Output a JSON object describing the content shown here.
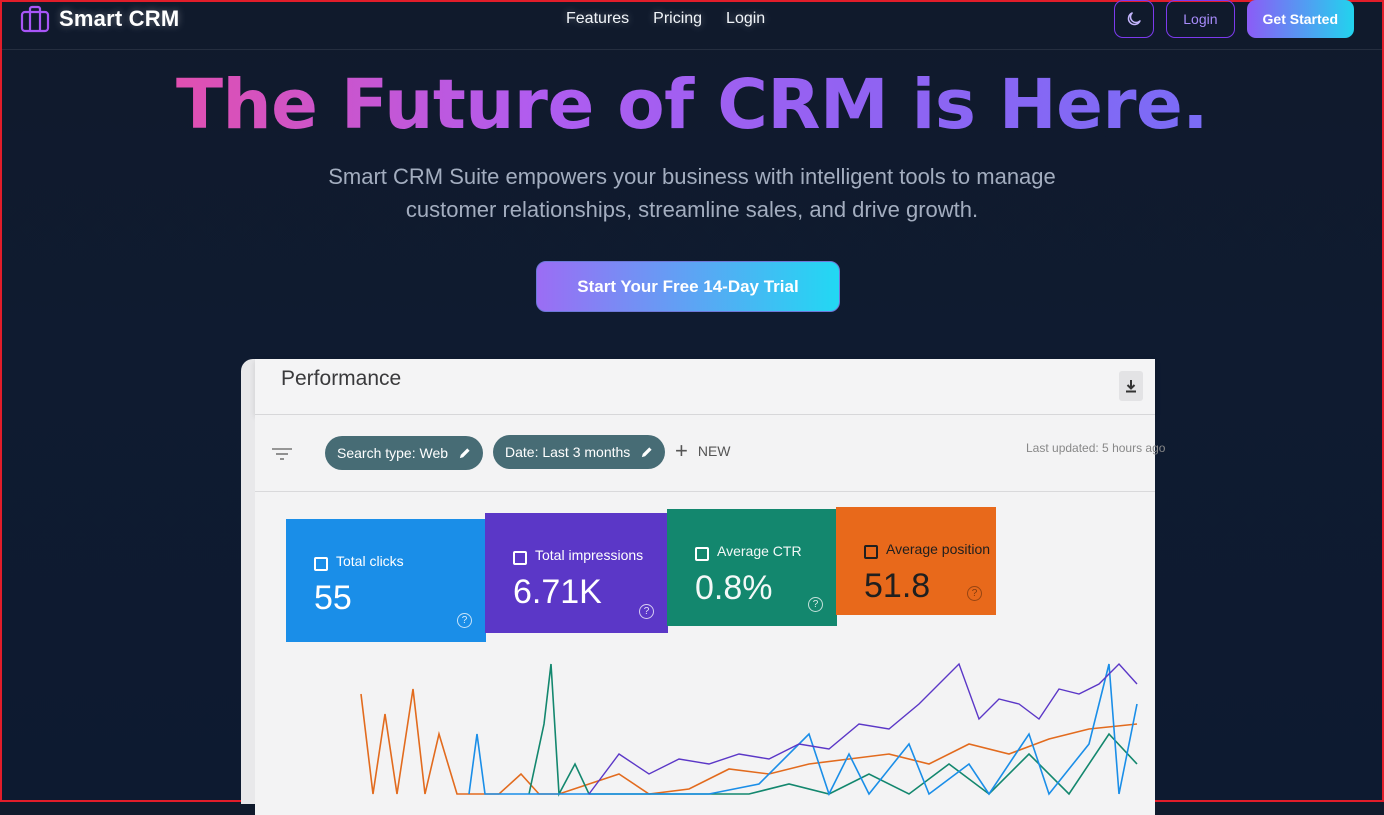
{
  "brand": {
    "name": "Smart CRM",
    "icon": "briefcase-icon"
  },
  "nav": {
    "links": [
      "Features",
      "Pricing",
      "Login"
    ]
  },
  "nav_actions": {
    "theme_icon": "moon-icon",
    "login_label": "Login",
    "cta_label": "Get Started"
  },
  "hero": {
    "title": "The Future of CRM is Here.",
    "subtitle": "Smart CRM Suite empowers your business with intelligent tools to manage customer relationships, streamline sales, and drive growth.",
    "cta_label": "Start Your Free 14-Day Trial"
  },
  "showcase": {
    "title": "Performance",
    "filters": [
      {
        "label": "Search type: Web",
        "icon": "pencil-icon"
      },
      {
        "label": "Date: Last 3 months",
        "icon": "pencil-icon"
      }
    ],
    "new_label": "NEW",
    "last_updated": "Last updated: 5 hours ago",
    "metrics": [
      {
        "label": "Total clicks",
        "value": "55",
        "color": "#1a8ee8"
      },
      {
        "label": "Total impressions",
        "value": "6.71K",
        "color": "#5b37c7"
      },
      {
        "label": "Average CTR",
        "value": "0.8%",
        "color": "#13876e"
      },
      {
        "label": "Average position",
        "value": "51.8",
        "color": "#e8691b"
      }
    ]
  },
  "colors": {
    "accent_purple": "#8b5cf6",
    "accent_cyan": "#22d3ee",
    "background": "#0f1b30"
  }
}
